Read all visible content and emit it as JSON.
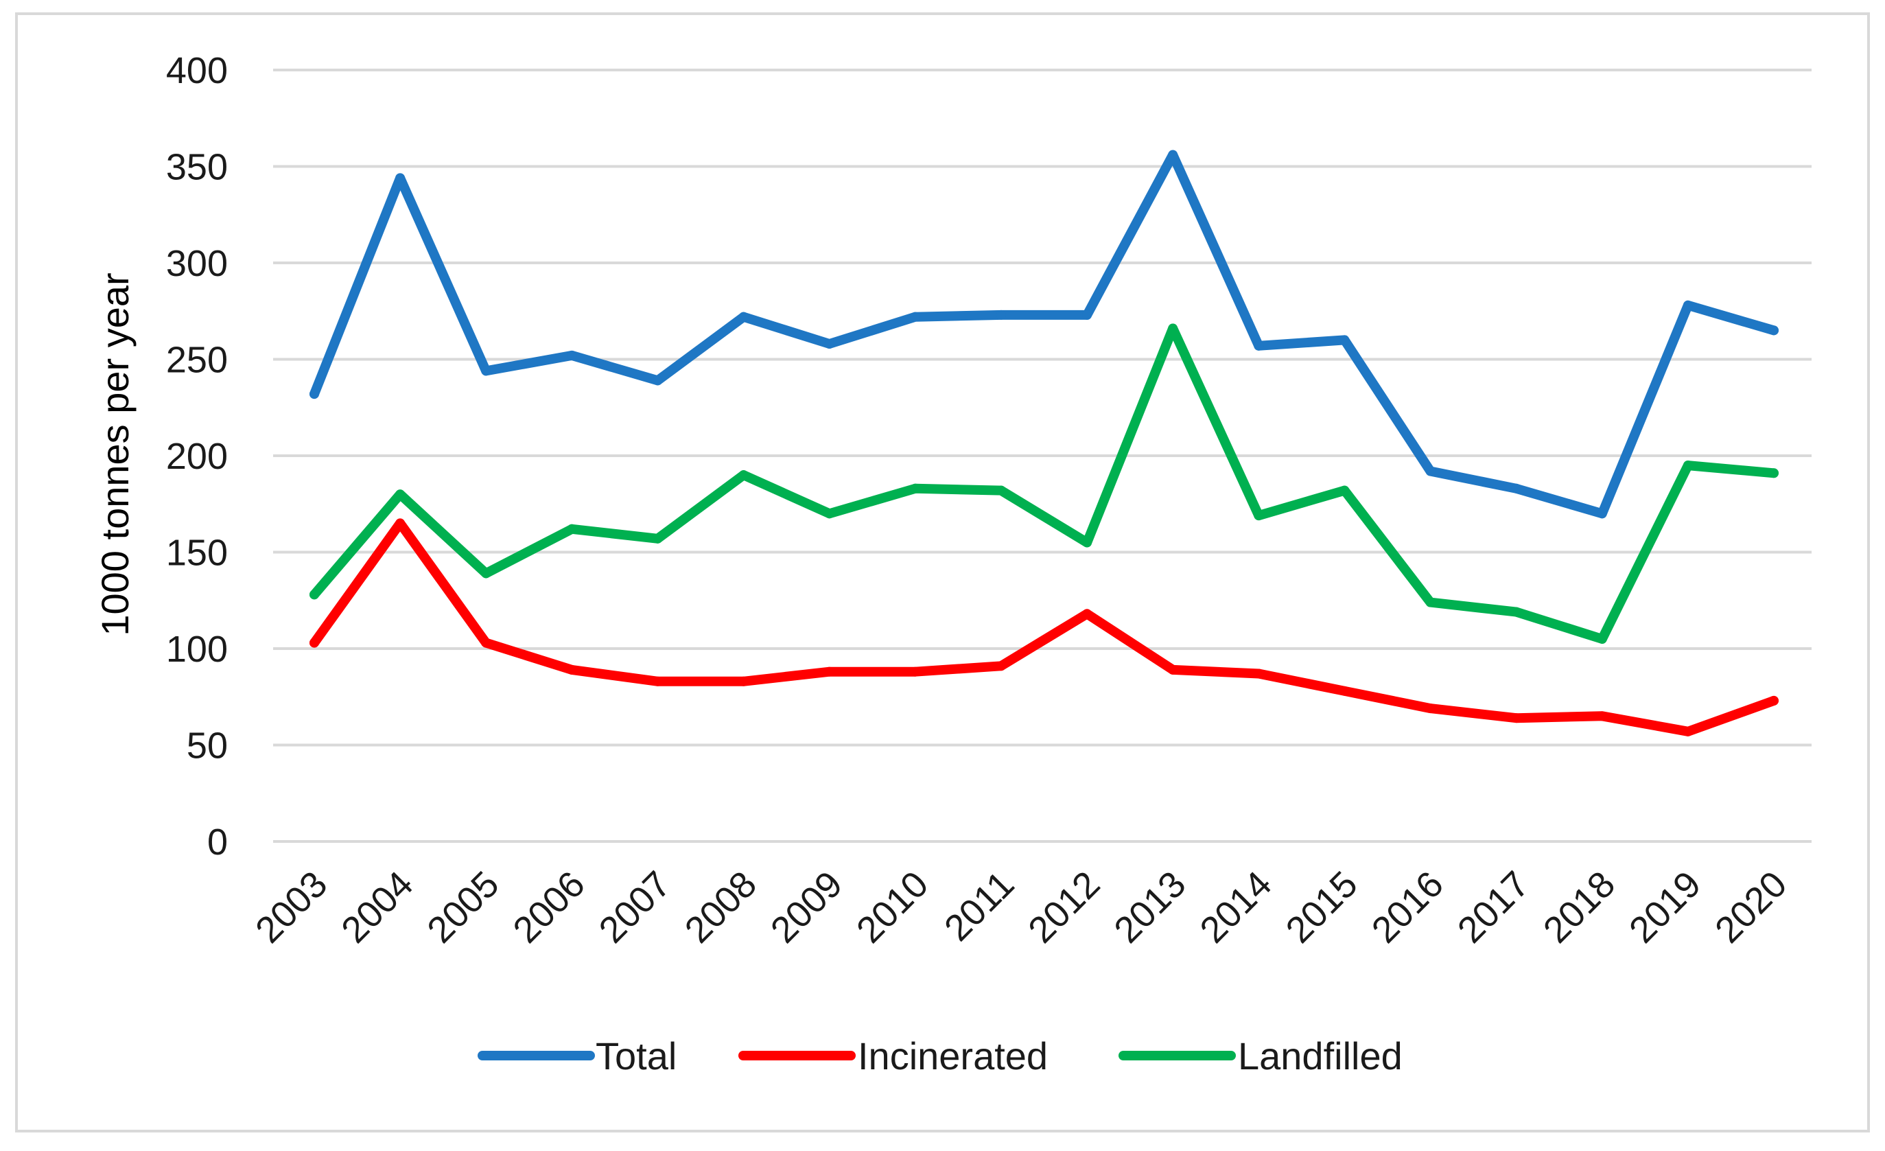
{
  "chart_data": {
    "type": "line",
    "title": "",
    "xlabel": "",
    "ylabel": "1000 tonnes per year",
    "ylim": [
      0,
      400
    ],
    "yticks": [
      0,
      50,
      100,
      150,
      200,
      250,
      300,
      350,
      400
    ],
    "grid": true,
    "legend_position": "bottom",
    "categories": [
      "2003",
      "2004",
      "2005",
      "2006",
      "2007",
      "2008",
      "2009",
      "2010",
      "2011",
      "2012",
      "2013",
      "2014",
      "2015",
      "2016",
      "2017",
      "2018",
      "2019",
      "2020"
    ],
    "series": [
      {
        "name": "Total",
        "color": "#1f77c4",
        "values": [
          232,
          344,
          244,
          252,
          239,
          272,
          258,
          272,
          273,
          273,
          356,
          257,
          260,
          192,
          183,
          170,
          278,
          265
        ]
      },
      {
        "name": "Incinerated",
        "color": "#ff0000",
        "values": [
          103,
          165,
          103,
          89,
          83,
          83,
          88,
          88,
          91,
          118,
          89,
          87,
          78,
          69,
          64,
          65,
          57,
          73
        ]
      },
      {
        "name": "Landfilled",
        "color": "#00b050",
        "values": [
          128,
          180,
          139,
          162,
          157,
          190,
          170,
          183,
          182,
          155,
          266,
          169,
          182,
          124,
          119,
          105,
          195,
          191
        ]
      }
    ]
  }
}
